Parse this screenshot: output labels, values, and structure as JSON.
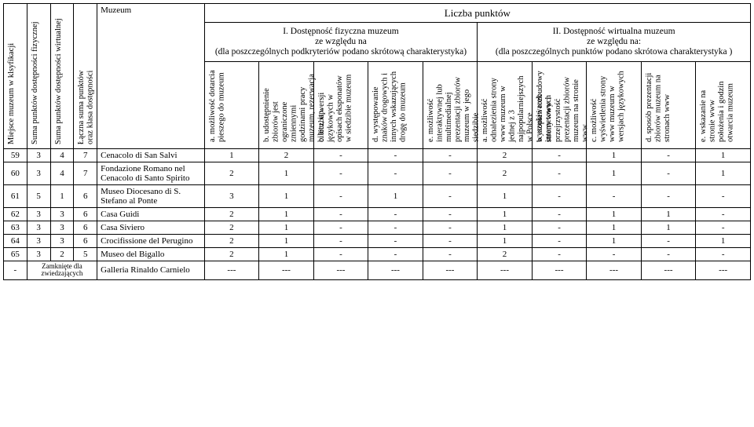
{
  "headers": {
    "v0": "Miejsce muzeum w klsyfikacji",
    "v1": "Suma punktów dostępności fizycznej",
    "v2": "Suma punktów dostępności wirtualnej",
    "v3a": "Łączna suma punktów",
    "v3b": "oraz klasa dostępności",
    "muzeum": "Muzeum",
    "liczba": "Liczba punktów",
    "sec1": "I. Dostępność fizyczna muzeum\nze względu na\n(dla poszczególnych podkryteriów podano skrótową charakterystyka)",
    "sec2": "II. Dostępność wirtualna muzeum\nze względu na:\n(dla poszczególnych punktów podano skrótowa charakterystyka )",
    "c": {
      "f_a": "a. możliwość dotarcia pieszego do muzeum",
      "f_b": "b. udostępnienie zbiorów jest ograniczone zmiennymi godzinami pracy muzeum, rezerwacja biletu, itp.",
      "f_c": "c. liczba wersji językowych w opisach eksponatów w siedzibie muzeum",
      "f_d": "d. występowanie znaków drogowych i innych wskazujących drogę do muzeum",
      "f_e": "e. możliwość interaktywnej lub multimedialnej prezentacji zbiorów muzeum w jego siedzibie",
      "w_a": "a. możliwość odnalezienia strony www muzeum w jednej z 3 najpopularniejszych w Polsce wyszukiwarek internetowych",
      "w_b": "b. stopień rozbudowy strony www i przejrzystość prezentacji zbiorów muzeum na stronie www",
      "w_c": "c. możliwość wyświetlenia strony www muzeum w wersjach językowych",
      "w_d": "d. sposób prezentacji zbiorów muzeum na stronach www",
      "w_e": "e. wskazanie na stronie www położenia i godzin otwarcia muzeum"
    }
  },
  "rows": [
    {
      "rank": "59",
      "sf": "3",
      "sw": "4",
      "sum": "7",
      "name": "Cenacolo di San Salvi",
      "c": [
        "1",
        "2",
        "-",
        "-",
        "-",
        "2",
        "-",
        "1",
        "-",
        "1"
      ]
    },
    {
      "rank": "60",
      "sf": "3",
      "sw": "4",
      "sum": "7",
      "name": "Fondazione Romano nel Cenacolo di Santo Spirito",
      "c": [
        "2",
        "1",
        "-",
        "-",
        "-",
        "2",
        "-",
        "1",
        "-",
        "1"
      ]
    },
    {
      "rank": "61",
      "sf": "5",
      "sw": "1",
      "sum": "6",
      "name": "Museo Diocesano di S. Stefano al Ponte",
      "c": [
        "3",
        "1",
        "-",
        "1",
        "-",
        "1",
        "-",
        "-",
        "-",
        "-"
      ]
    },
    {
      "rank": "62",
      "sf": "3",
      "sw": "3",
      "sum": "6",
      "name": "Casa Guidi",
      "c": [
        "2",
        "1",
        "-",
        "-",
        "-",
        "1",
        "-",
        "1",
        "1",
        "-"
      ]
    },
    {
      "rank": "63",
      "sf": "3",
      "sw": "3",
      "sum": "6",
      "name": "Casa Siviero",
      "c": [
        "2",
        "1",
        "-",
        "-",
        "-",
        "1",
        "-",
        "1",
        "1",
        "-"
      ]
    },
    {
      "rank": "64",
      "sf": "3",
      "sw": "3",
      "sum": "6",
      "name": "Crocifissione del Perugino",
      "c": [
        "2",
        "1",
        "-",
        "-",
        "-",
        "1",
        "-",
        "1",
        "-",
        "1"
      ]
    },
    {
      "rank": "65",
      "sf": "3",
      "sw": "2",
      "sum": "5",
      "name": "Museo del Bigallo",
      "c": [
        "2",
        "1",
        "-",
        "-",
        "-",
        "2",
        "-",
        "-",
        "-",
        "-"
      ]
    },
    {
      "rank": "-",
      "sf": "",
      "sw": "",
      "sum": "",
      "name": "Galleria Rinaldo Carnielo",
      "closed": "Zamknięte dla zwiedzających",
      "c": [
        "---",
        "---",
        "---",
        "---",
        "---",
        "---",
        "---",
        "---",
        "---",
        "---"
      ]
    }
  ]
}
